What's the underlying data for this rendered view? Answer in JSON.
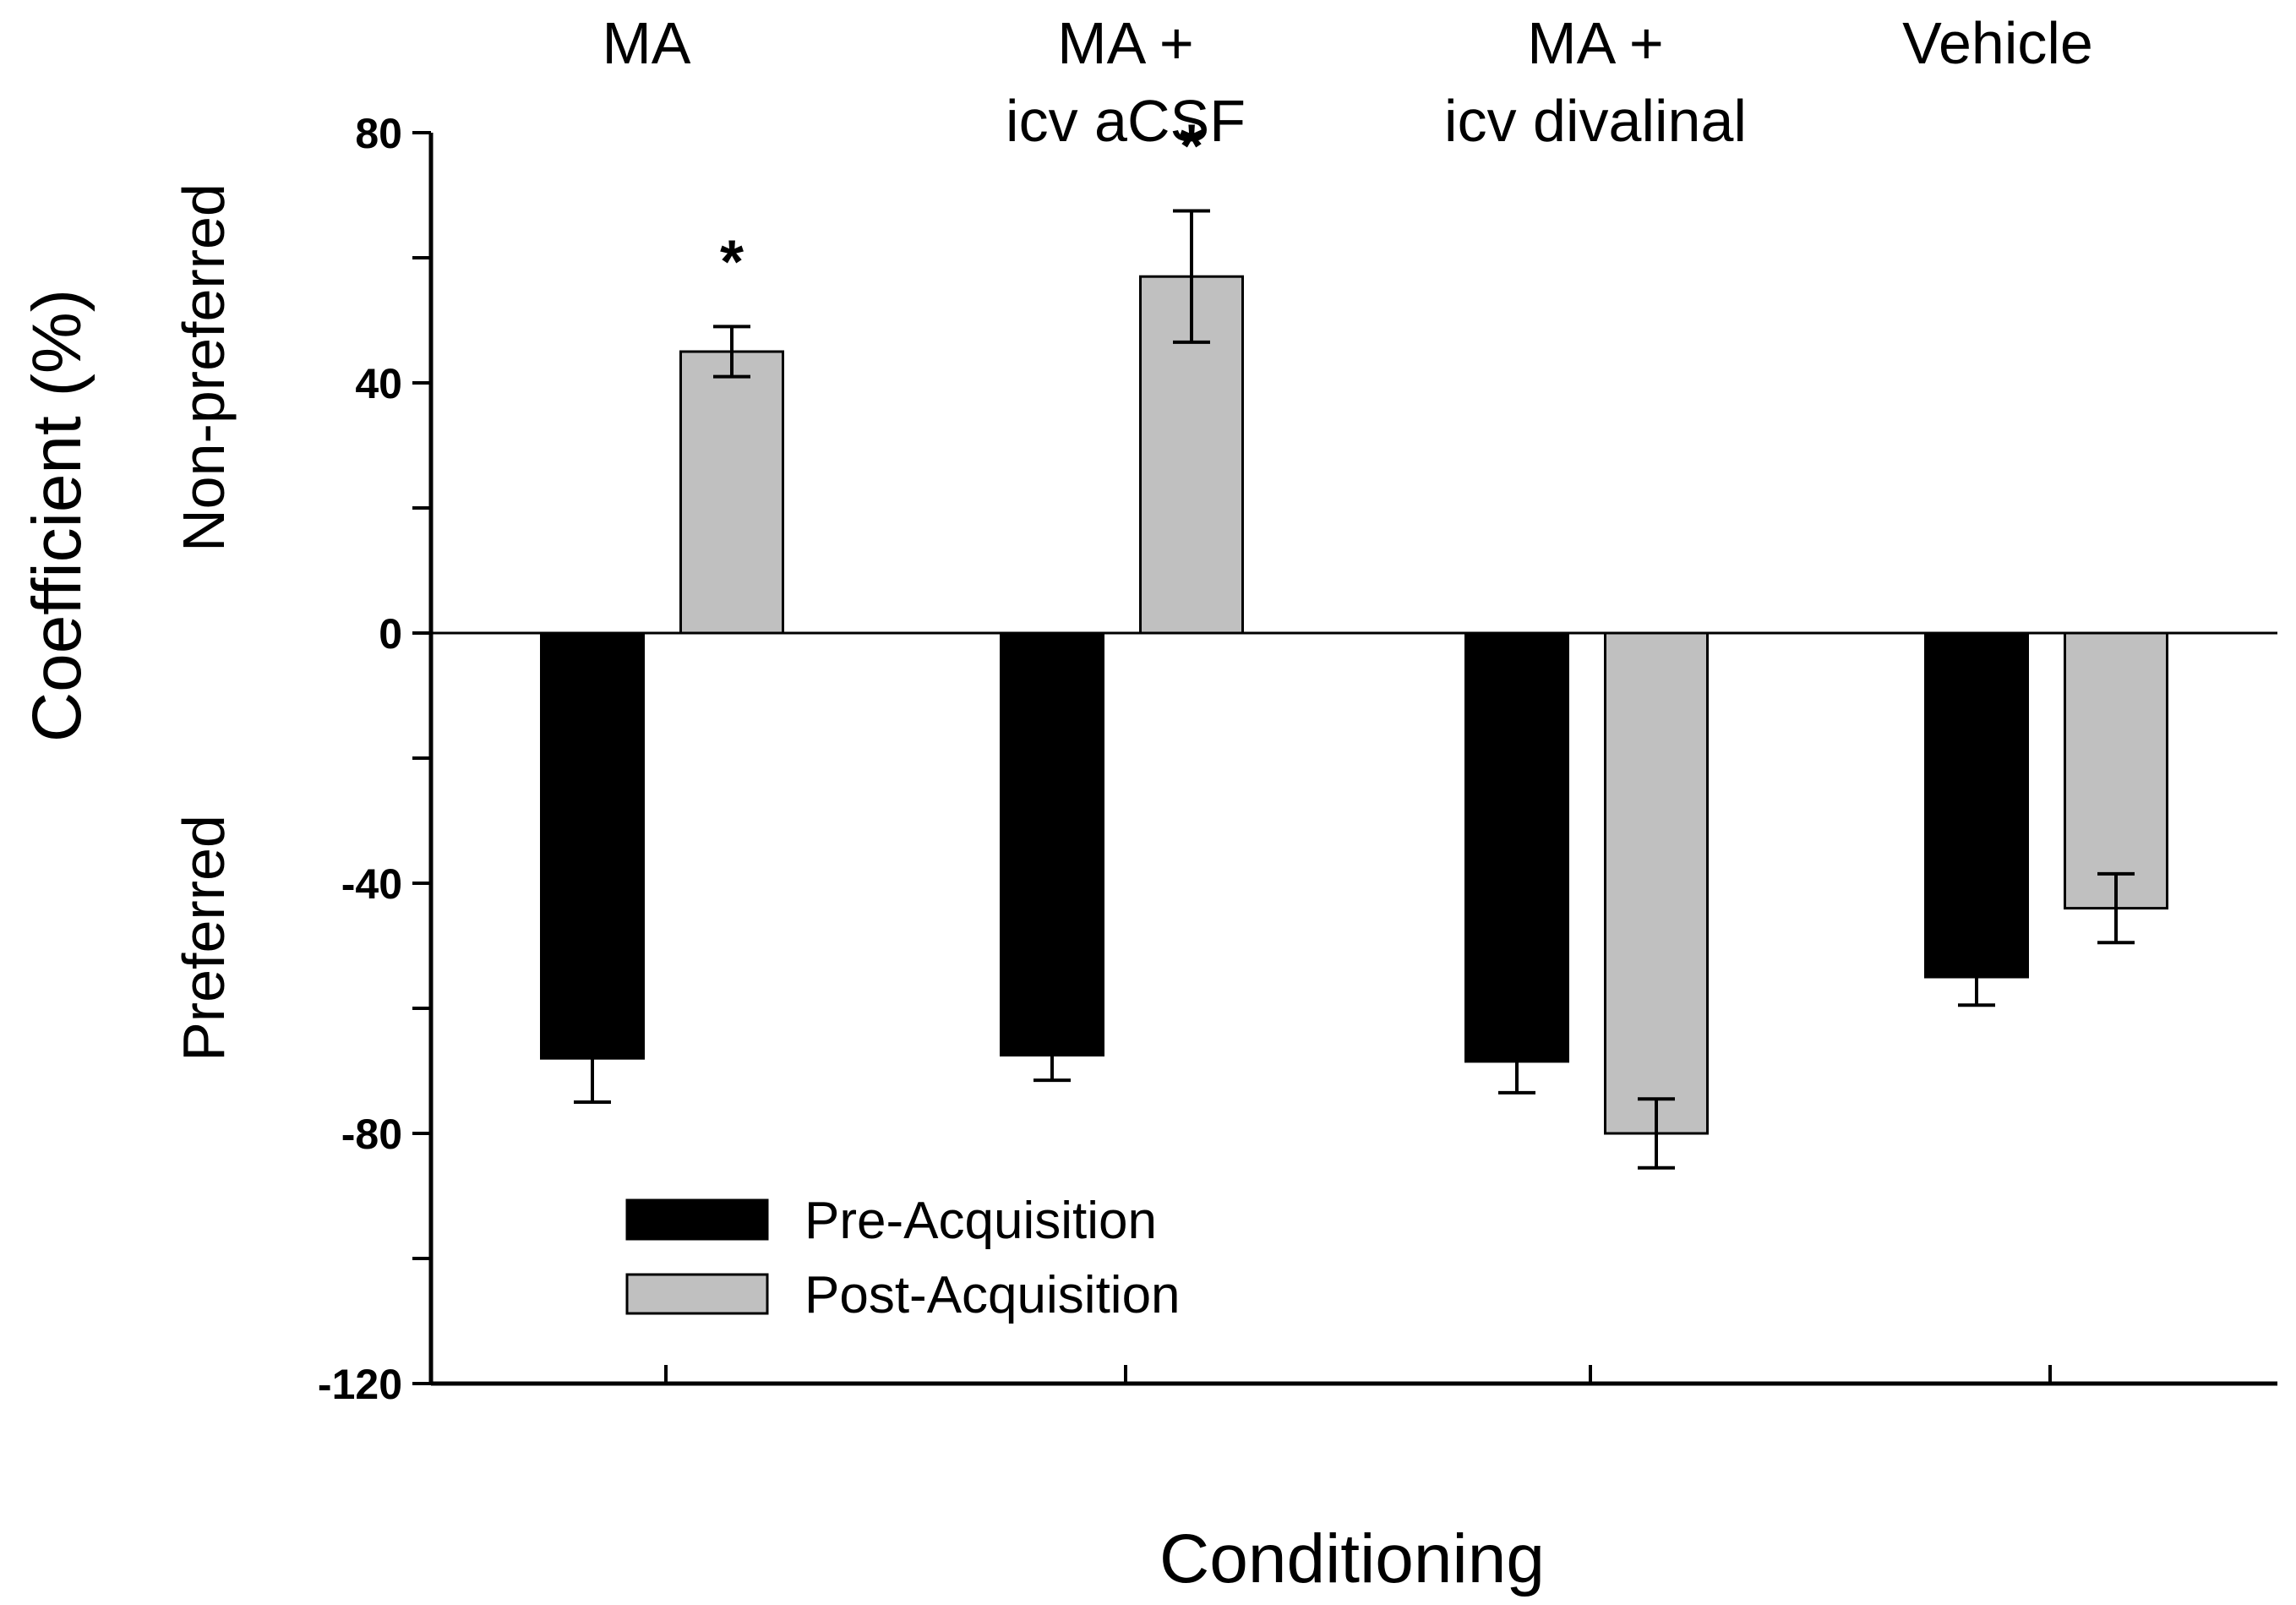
{
  "chart_data": {
    "type": "bar",
    "categories": [
      [
        "MA"
      ],
      [
        "MA  +",
        "icv aCSF"
      ],
      [
        "MA  +",
        "icv divalinal"
      ],
      [
        "Vehicle"
      ]
    ],
    "series": [
      {
        "name": "Pre-Acquisition",
        "color": "#000000",
        "values": [
          -68,
          -67.5,
          -68.5,
          -55
        ],
        "errors": [
          7,
          4,
          5,
          4.5
        ]
      },
      {
        "name": "Post-Acquisition",
        "color": "#c0c0c0",
        "values": [
          45,
          57,
          -80,
          -44
        ],
        "errors": [
          4,
          10.5,
          5.5,
          5.5
        ]
      }
    ],
    "significance": [
      {
        "category": 0,
        "series": 1,
        "marker": "*"
      },
      {
        "category": 1,
        "series": 1,
        "marker": "*"
      }
    ],
    "title": "",
    "xlabel": "Conditioning",
    "ylabel": "Coefficient (%)",
    "ylabel_upper": "Non-preferred",
    "ylabel_lower": "Preferred",
    "ylim": [
      -120,
      80
    ],
    "yticks": [
      80,
      40,
      0,
      -40,
      -80,
      -120
    ],
    "ytick_labels": [
      "80",
      "40",
      "0",
      "-40",
      "-80",
      "-120"
    ],
    "legend_position": "bottom-left",
    "grid": false
  }
}
